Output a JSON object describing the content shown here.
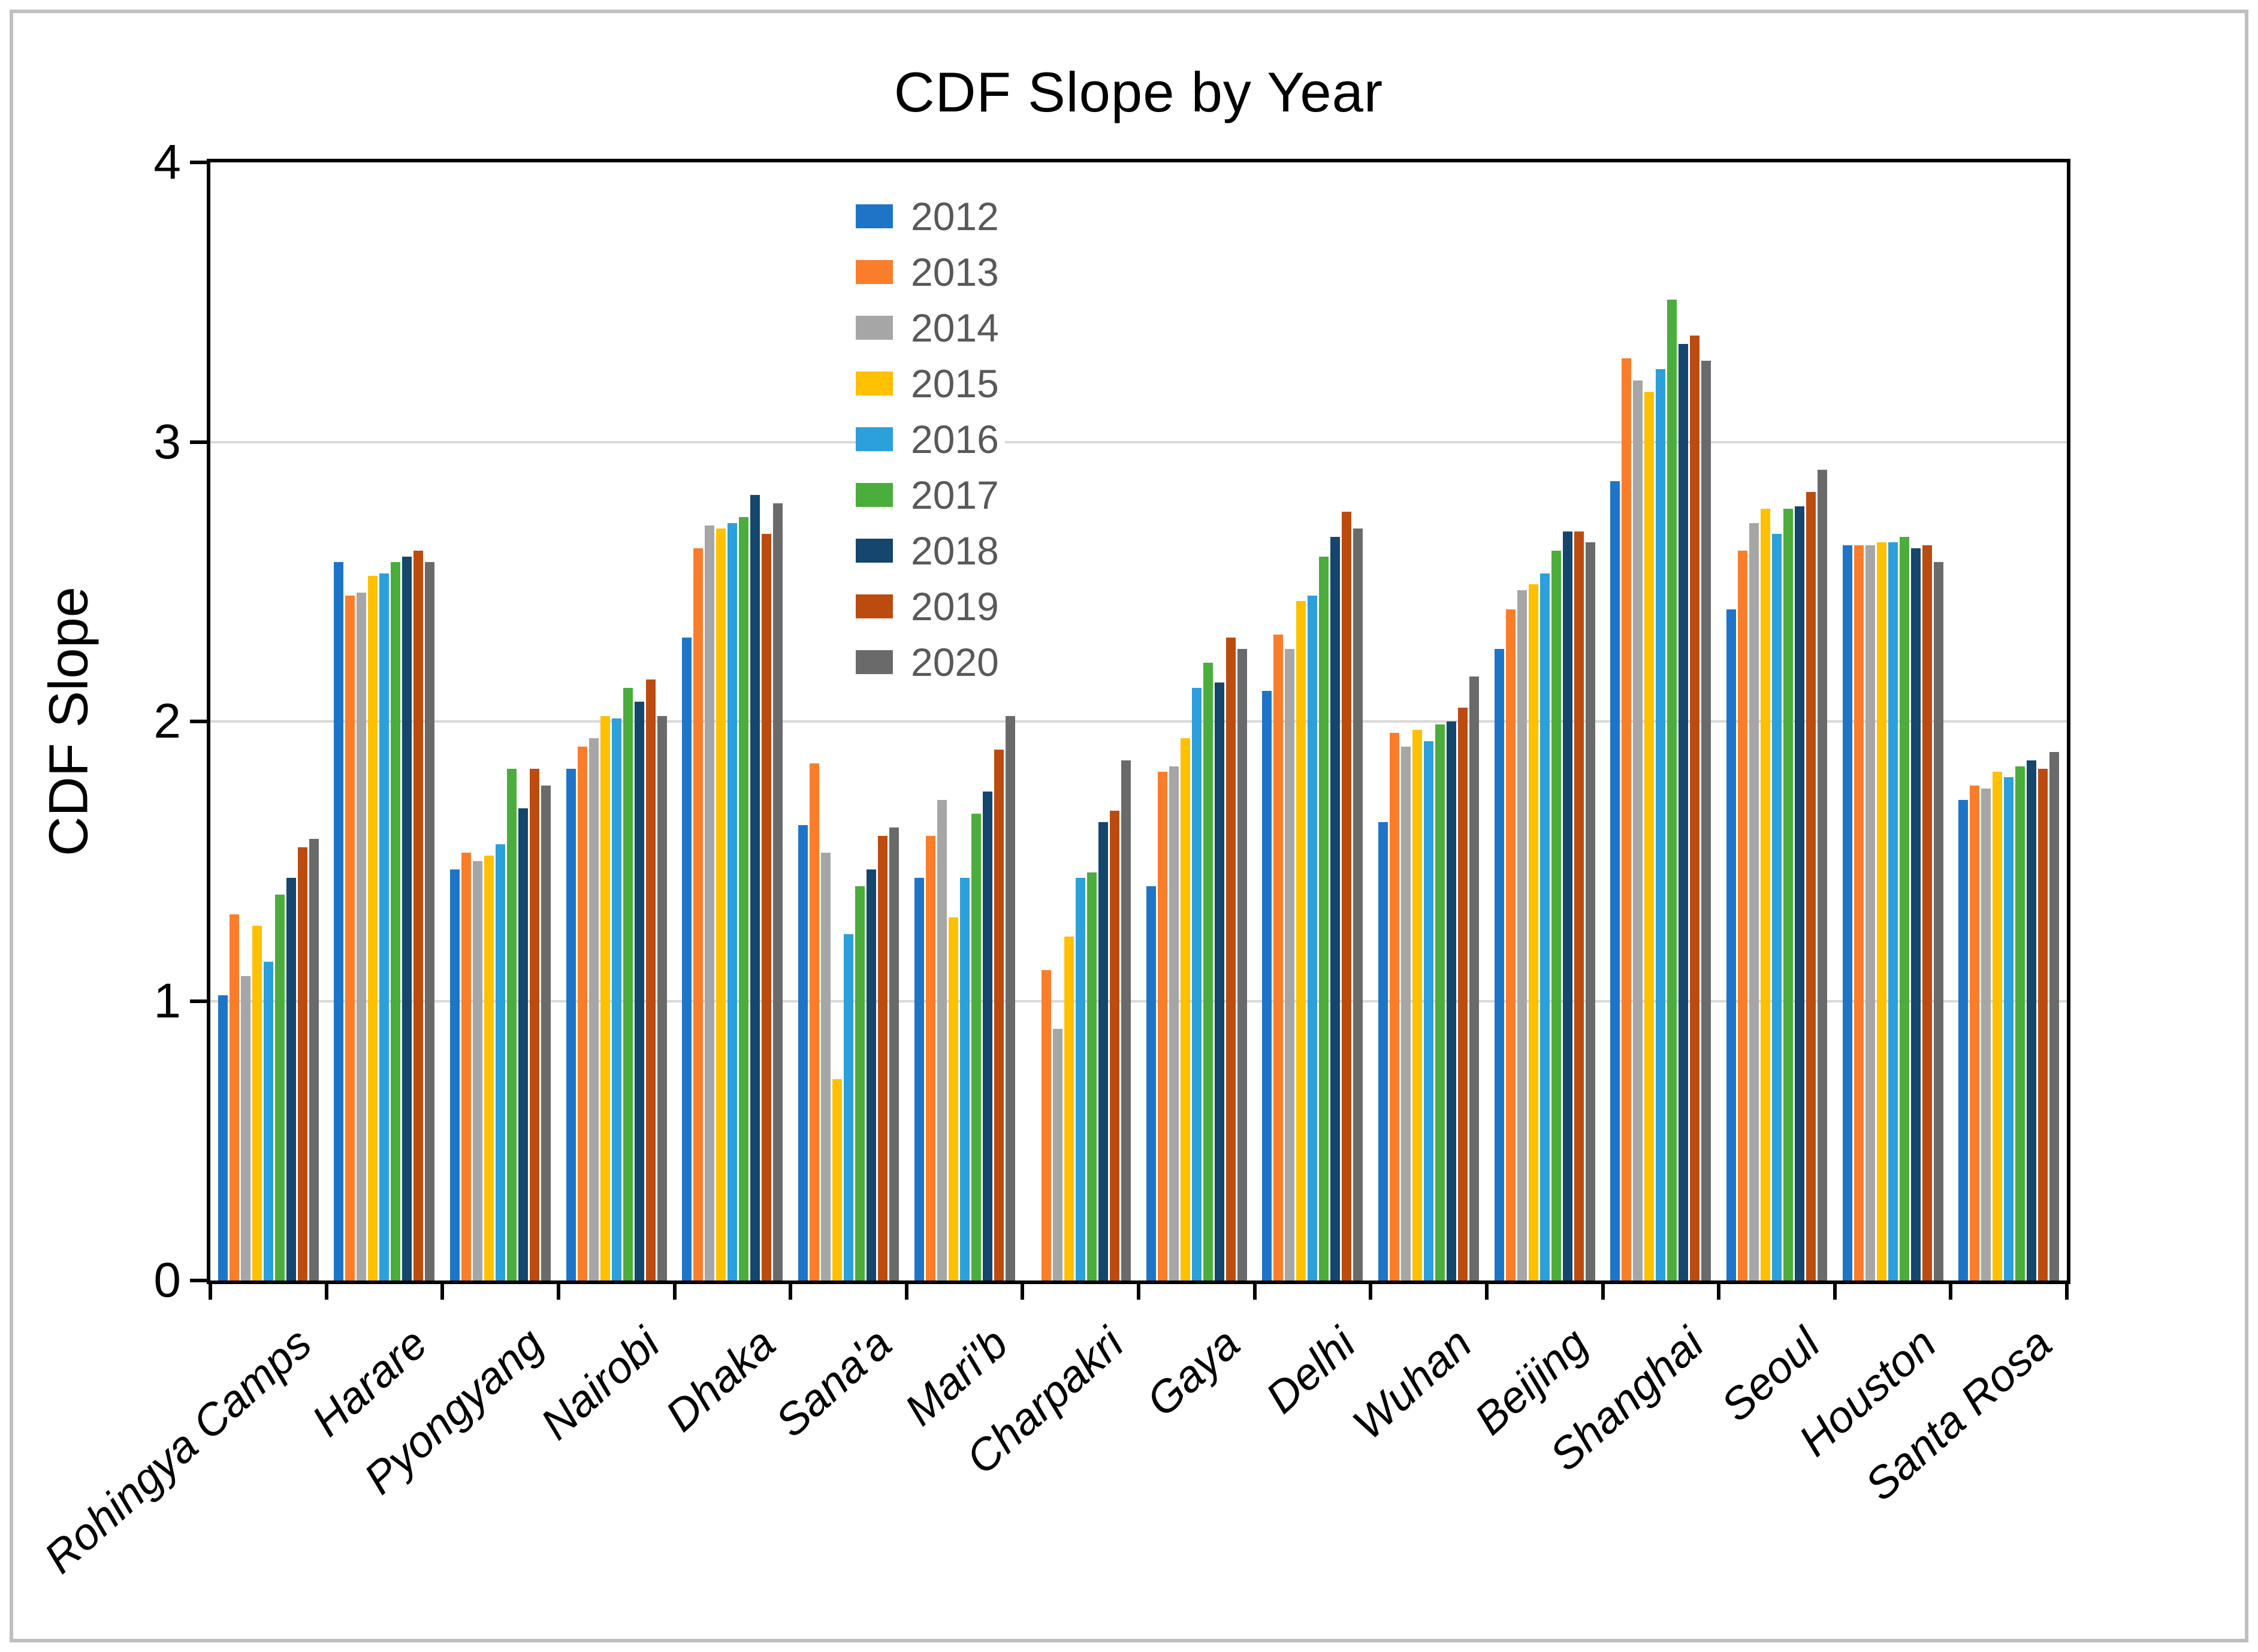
{
  "title": "CDF Slope by Year",
  "chart_data": {
    "type": "bar",
    "title": "CDF Slope by Year",
    "xlabel": "",
    "ylabel": "CDF Slope",
    "ylim": [
      0,
      4
    ],
    "yticks": [
      0,
      1,
      2,
      3,
      4
    ],
    "grid": "horizontal",
    "gridline_color": "#d9d9d9",
    "axis_color": "#000000",
    "legend_position": "inside top-center, single column",
    "legend_text_color": "#595959",
    "categories": [
      "Rohingya Camps",
      "Harare",
      "Pyongyang",
      "Nairobi",
      "Dhaka",
      "Sana'a",
      "Mari'b",
      "Charpakri",
      "Gaya",
      "Delhi",
      "Wuhan",
      "Beijing",
      "Shanghai",
      "Seoul",
      "Houston",
      "Santa Rosa"
    ],
    "series": [
      {
        "name": "2012",
        "color": "#1e75c8",
        "values": [
          1.02,
          2.57,
          1.47,
          1.83,
          2.3,
          1.63,
          1.44,
          null,
          1.41,
          2.11,
          1.64,
          2.26,
          2.86,
          2.4,
          2.63,
          1.72
        ]
      },
      {
        "name": "2013",
        "color": "#fa7d2b",
        "values": [
          1.31,
          2.45,
          1.53,
          1.91,
          2.62,
          1.85,
          1.59,
          1.11,
          1.82,
          2.31,
          1.96,
          2.4,
          3.3,
          2.61,
          2.63,
          1.77
        ]
      },
      {
        "name": "2014",
        "color": "#a6a6a6",
        "values": [
          1.09,
          2.46,
          1.5,
          1.94,
          2.7,
          1.53,
          1.72,
          0.9,
          1.84,
          2.26,
          1.91,
          2.47,
          3.22,
          2.71,
          2.63,
          1.76
        ]
      },
      {
        "name": "2015",
        "color": "#ffc000",
        "values": [
          1.27,
          2.52,
          1.52,
          2.02,
          2.69,
          0.72,
          1.3,
          1.23,
          1.94,
          2.43,
          1.97,
          2.49,
          3.18,
          2.76,
          2.64,
          1.82
        ]
      },
      {
        "name": "2016",
        "color": "#2ba0db",
        "values": [
          1.14,
          2.53,
          1.56,
          2.01,
          2.71,
          1.24,
          1.44,
          1.44,
          2.12,
          2.45,
          1.93,
          2.53,
          3.26,
          2.67,
          2.64,
          1.8
        ]
      },
      {
        "name": "2017",
        "color": "#4bad3c",
        "values": [
          1.38,
          2.57,
          1.83,
          2.12,
          2.73,
          1.41,
          1.67,
          1.46,
          2.21,
          2.59,
          1.99,
          2.61,
          3.51,
          2.76,
          2.66,
          1.84
        ]
      },
      {
        "name": "2018",
        "color": "#14466e",
        "values": [
          1.44,
          2.59,
          1.69,
          2.07,
          2.81,
          1.47,
          1.75,
          1.64,
          2.14,
          2.66,
          2.0,
          2.68,
          3.35,
          2.77,
          2.62,
          1.86
        ]
      },
      {
        "name": "2019",
        "color": "#bc4b10",
        "values": [
          1.55,
          2.61,
          1.83,
          2.15,
          2.67,
          1.59,
          1.9,
          1.68,
          2.3,
          2.75,
          2.05,
          2.68,
          3.38,
          2.82,
          2.63,
          1.83
        ]
      },
      {
        "name": "2020",
        "color": "#6a6a6a",
        "values": [
          1.58,
          2.57,
          1.77,
          2.02,
          2.78,
          1.62,
          2.02,
          1.86,
          2.26,
          2.69,
          2.16,
          2.64,
          3.29,
          2.9,
          2.57,
          1.89
        ]
      }
    ]
  }
}
